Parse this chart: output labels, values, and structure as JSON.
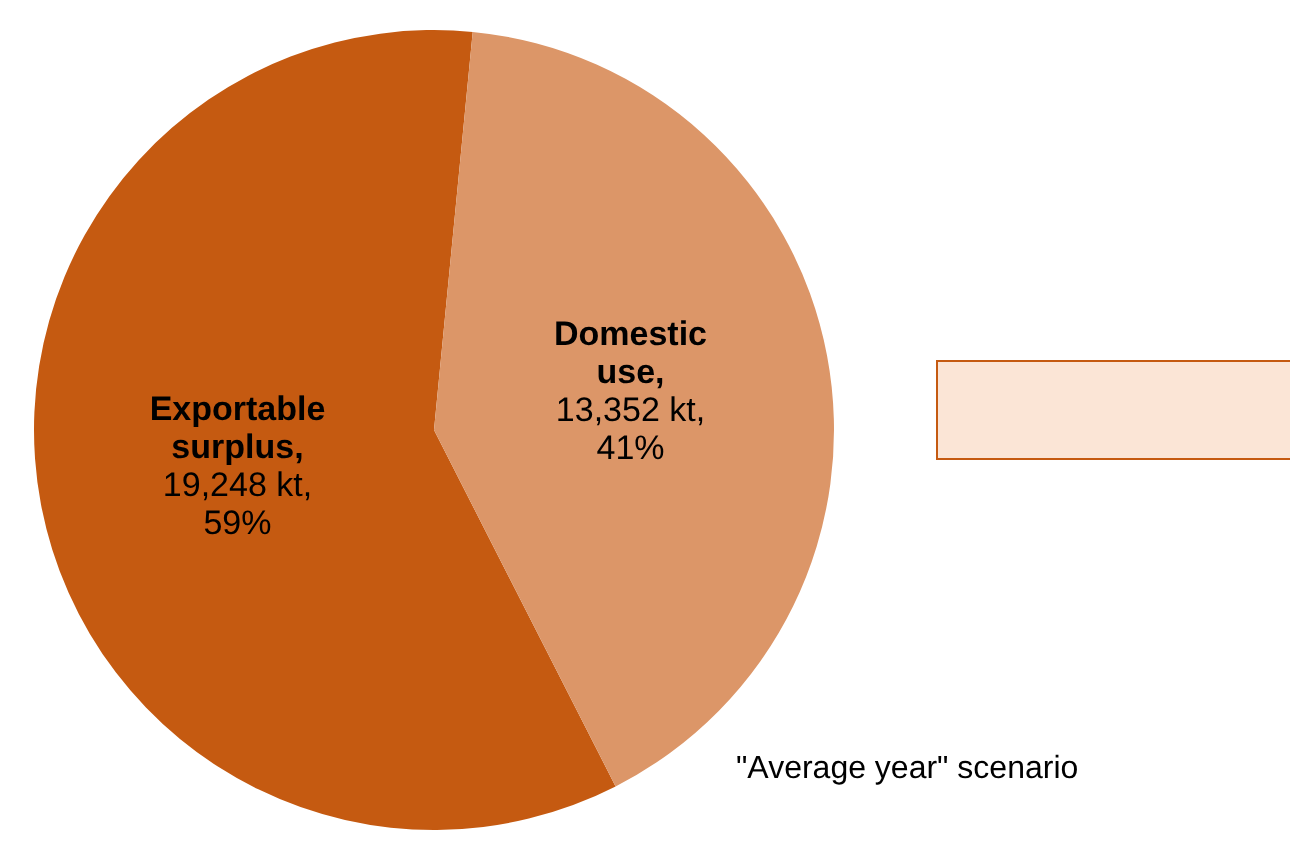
{
  "chart_data": {
    "type": "pie",
    "categories": [
      "Exportable surplus",
      "Domestic use"
    ],
    "values": [
      19248,
      13352
    ],
    "colors": [
      "#c55a11",
      "#dc9668"
    ],
    "value_labels": [
      ",\n19,248 kt,\n59%",
      ",\n13,352 kt,\n41%"
    ],
    "annotations": [
      "\"Average year\" scenario"
    ],
    "legend": false
  }
}
